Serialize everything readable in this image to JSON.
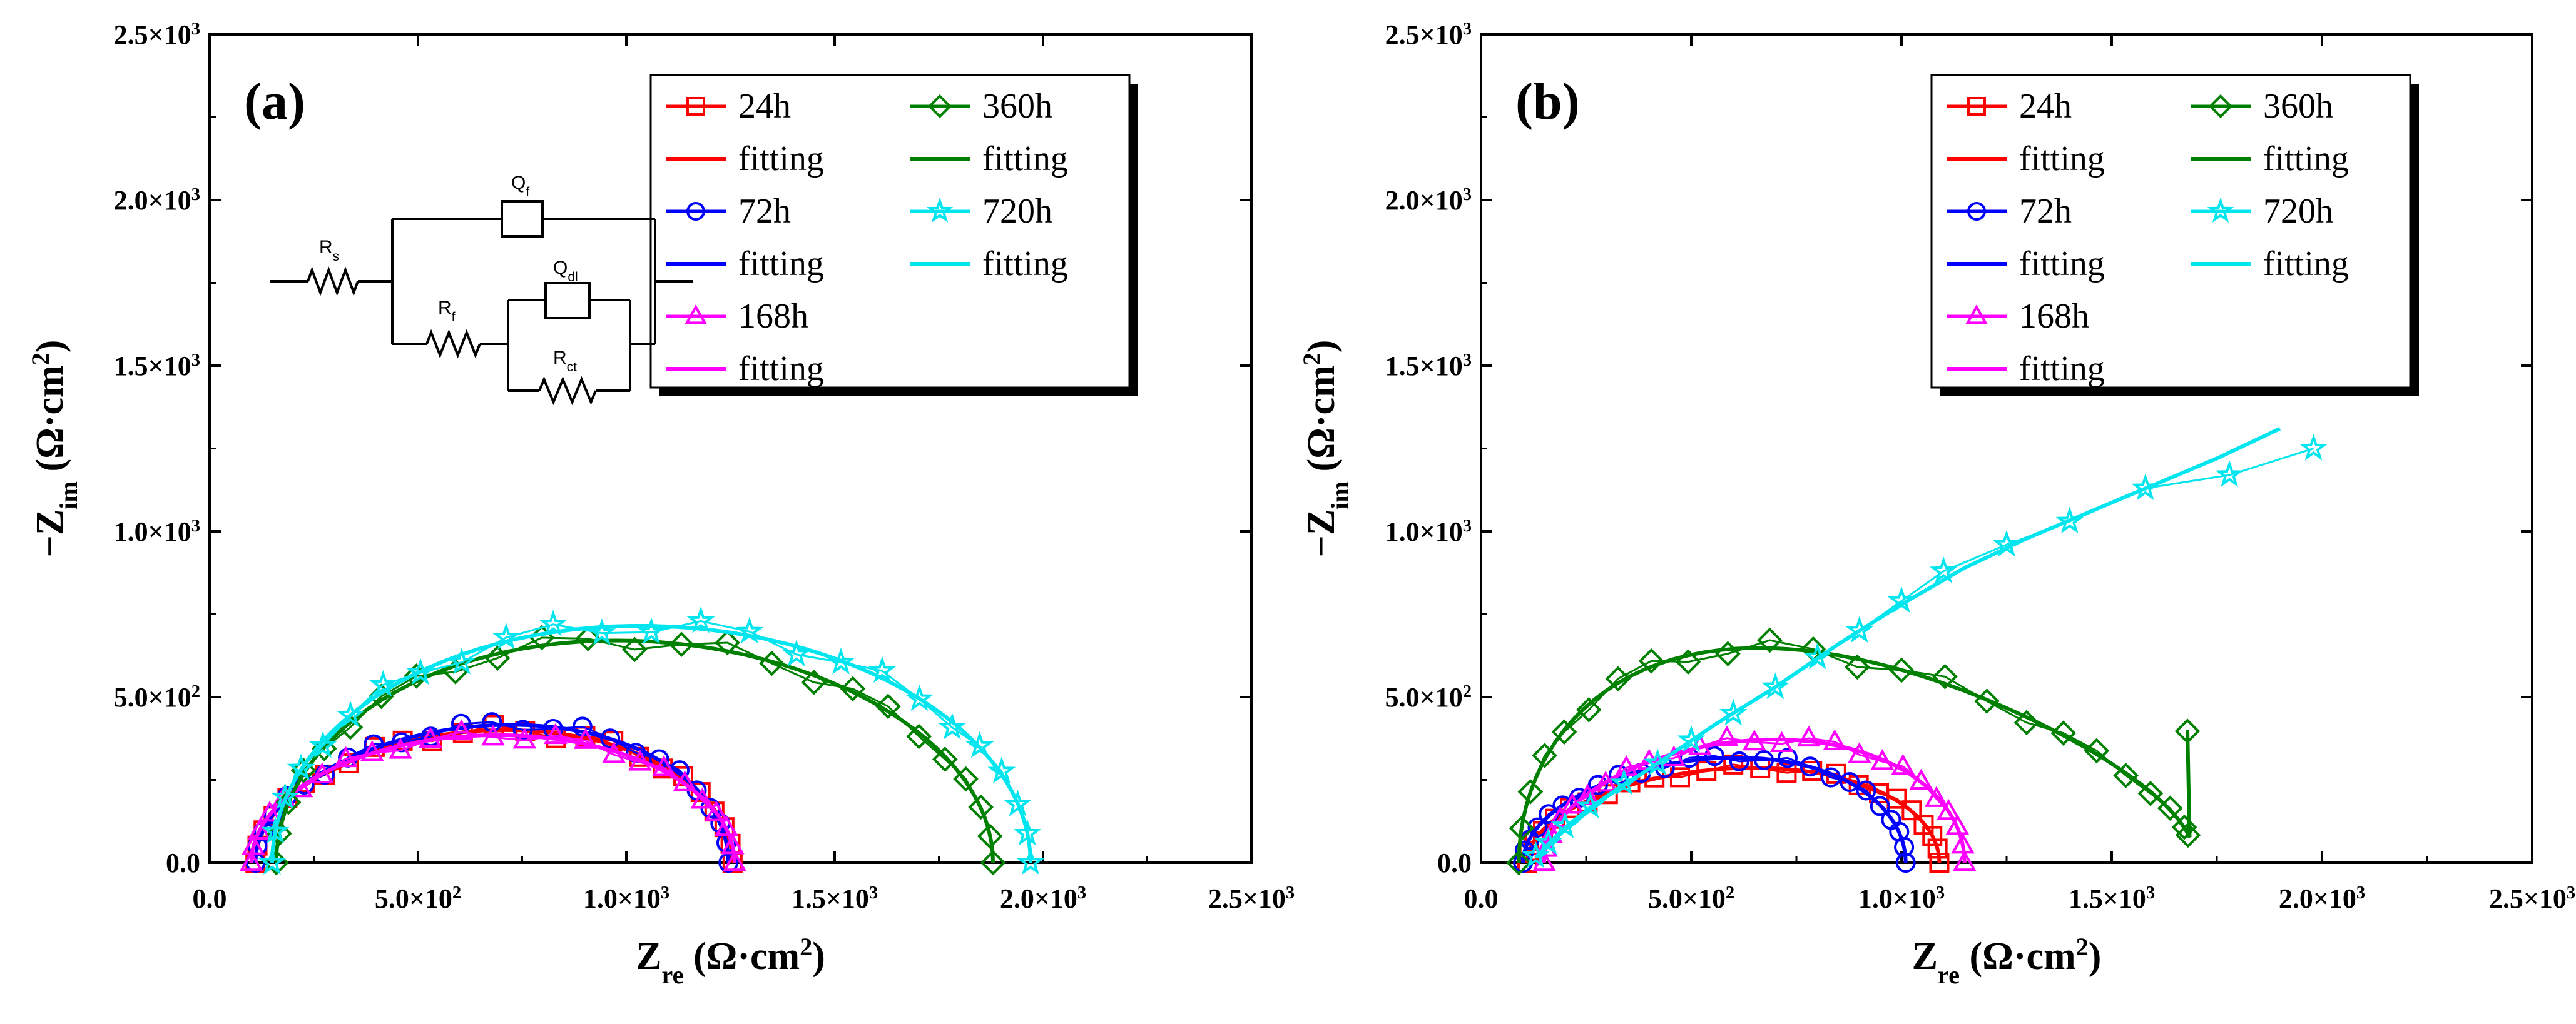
{
  "chart_data": [
    {
      "type": "scatter",
      "panel_label": "(a)",
      "xlabel": "Z_re (Ω·cm²)",
      "ylabel": "−Z_im (Ω·cm²)",
      "xlim": [
        0,
        2500
      ],
      "ylim": [
        0,
        2500
      ],
      "x_ticks": [
        0,
        500,
        1000,
        1500,
        2000,
        2500
      ],
      "y_ticks": [
        0,
        500,
        1000,
        1500,
        2000,
        2500
      ],
      "x_tick_labels": [
        "0.0",
        "5.0×10²",
        "1.0×10³",
        "1.5×10³",
        "2.0×10³",
        "2.5×10³"
      ],
      "y_tick_labels": [
        "0.0",
        "5.0×10²",
        "1.0×10³",
        "1.5×10³",
        "2.0×10³",
        "2.5×10³"
      ],
      "legend_position": "top-right",
      "legend_fitting_label": "fitting",
      "inset_circuit": {
        "labels": [
          "Rs",
          "Qf",
          "Rf",
          "Qdl",
          "Rct"
        ]
      },
      "series": [
        {
          "name": "24h",
          "color": "#ff0000",
          "marker": "square",
          "fit": {
            "x0": 110,
            "x1": 1255,
            "peak": 400,
            "skew": 0.05
          }
        },
        {
          "name": "72h",
          "color": "#0000ff",
          "marker": "circle",
          "fit": {
            "x0": 110,
            "x1": 1245,
            "peak": 415,
            "skew": 0.08
          }
        },
        {
          "name": "168h",
          "color": "#ff00ff",
          "marker": "triangle",
          "fit": {
            "x0": 100,
            "x1": 1260,
            "peak": 385,
            "skew": 0.02
          }
        },
        {
          "name": "360h",
          "color": "#008000",
          "marker": "diamond",
          "fit": {
            "x0": 160,
            "x1": 1880,
            "peak": 670,
            "skew": -0.05
          }
        },
        {
          "name": "720h",
          "color": "#00e5ee",
          "marker": "star",
          "fit": {
            "x0": 150,
            "x1": 1970,
            "peak": 715,
            "skew": -0.03
          }
        }
      ]
    },
    {
      "type": "scatter",
      "panel_label": "(b)",
      "xlabel": "Z_re (Ω·cm²)",
      "ylabel": "−Z_im (Ω·cm²)",
      "xlim": [
        0,
        2500
      ],
      "ylim": [
        0,
        2500
      ],
      "x_ticks": [
        0,
        500,
        1000,
        1500,
        2000,
        2500
      ],
      "y_ticks": [
        0,
        500,
        1000,
        1500,
        2000,
        2500
      ],
      "x_tick_labels": [
        "0.0",
        "5.0×10²",
        "1.0×10³",
        "1.5×10³",
        "2.0×10³",
        "2.5×10³"
      ],
      "y_tick_labels": [
        "0.0",
        "5.0×10²",
        "1.0×10³",
        "1.5×10³",
        "2.0×10³",
        "2.5×10³"
      ],
      "legend_position": "top-right",
      "legend_fitting_label": "fitting",
      "series": [
        {
          "name": "24h",
          "color": "#ff0000",
          "marker": "square",
          "fit": {
            "x0": 110,
            "x1": 1090,
            "peak": 285,
            "skew": 0.1
          }
        },
        {
          "name": "72h",
          "color": "#0000ff",
          "marker": "circle",
          "fit": {
            "x0": 100,
            "x1": 1010,
            "peak": 315,
            "skew": 0.12
          }
        },
        {
          "name": "168h",
          "color": "#ff00ff",
          "marker": "triangle",
          "fit": {
            "x0": 150,
            "x1": 1150,
            "peak": 370,
            "skew": 0.1
          }
        },
        {
          "name": "360h",
          "color": "#008000",
          "marker": "diamond",
          "fit": {
            "x0": 90,
            "x1": 1700,
            "peak": 615,
            "skew": -0.35,
            "end_y": 400
          }
        },
        {
          "name": "720h",
          "color": "#00e5ee",
          "marker": "star",
          "points": [
            [
              130,
              20
            ],
            [
              160,
              60
            ],
            [
              200,
              110
            ],
            [
              260,
              170
            ],
            [
              340,
              240
            ],
            [
              420,
              300
            ],
            [
              500,
              370
            ],
            [
              600,
              450
            ],
            [
              700,
              530
            ],
            [
              800,
              620
            ],
            [
              900,
              700
            ],
            [
              1000,
              790
            ],
            [
              1100,
              880
            ],
            [
              1250,
              960
            ],
            [
              1400,
              1030
            ],
            [
              1580,
              1130
            ],
            [
              1780,
              1170
            ],
            [
              1980,
              1250
            ]
          ],
          "fit_points": [
            [
              130,
              15
            ],
            [
              200,
              100
            ],
            [
              300,
              200
            ],
            [
              420,
              300
            ],
            [
              560,
              420
            ],
            [
              700,
              530
            ],
            [
              850,
              660
            ],
            [
              1000,
              780
            ],
            [
              1150,
              890
            ],
            [
              1300,
              980
            ],
            [
              1450,
              1060
            ],
            [
              1600,
              1140
            ],
            [
              1750,
              1220
            ],
            [
              1900,
              1310
            ]
          ]
        }
      ]
    }
  ]
}
